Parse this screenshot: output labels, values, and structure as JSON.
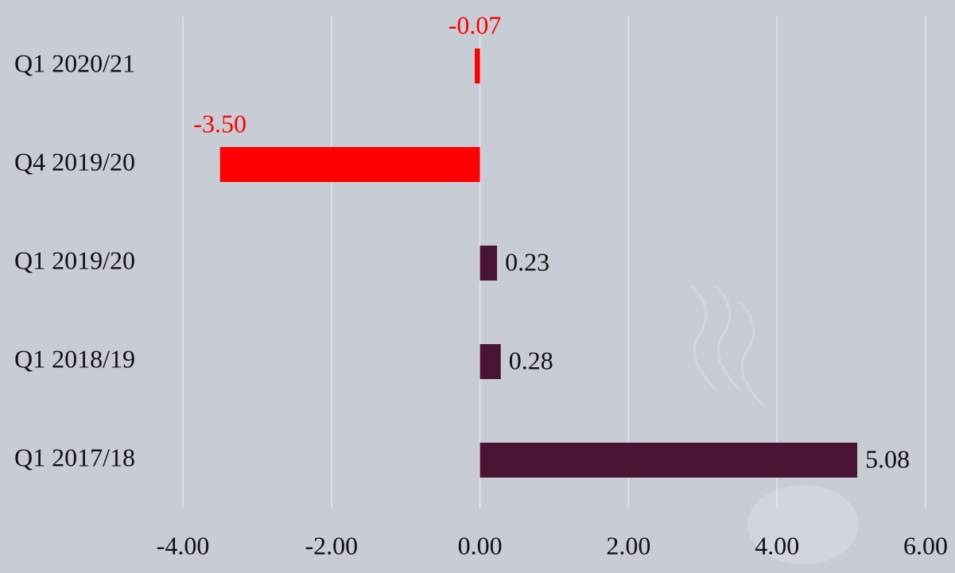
{
  "chart_data": {
    "type": "hbar",
    "categories": [
      "Q1 2020/21",
      "Q4 2019/20",
      "Q1 2019/20",
      "Q1 2018/19",
      "Q1 2017/18"
    ],
    "values": [
      -0.07,
      -3.5,
      0.23,
      0.28,
      5.08
    ],
    "value_labels": [
      "-0.07",
      "-3.50",
      "0.23",
      "0.28",
      "5.08"
    ],
    "colors": [
      "#ff0000",
      "#ff0000",
      "#4a1535",
      "#4a1535",
      "#4a1535"
    ],
    "xlim": [
      -4,
      6
    ],
    "xticks": [
      {
        "value": -4,
        "label": "-4.00"
      },
      {
        "value": -2,
        "label": "-2.00"
      },
      {
        "value": 0,
        "label": "0.00"
      },
      {
        "value": 2,
        "label": "2.00"
      },
      {
        "value": 4,
        "label": "4.00"
      },
      {
        "value": 6,
        "label": "6.00"
      }
    ],
    "grid": true
  }
}
